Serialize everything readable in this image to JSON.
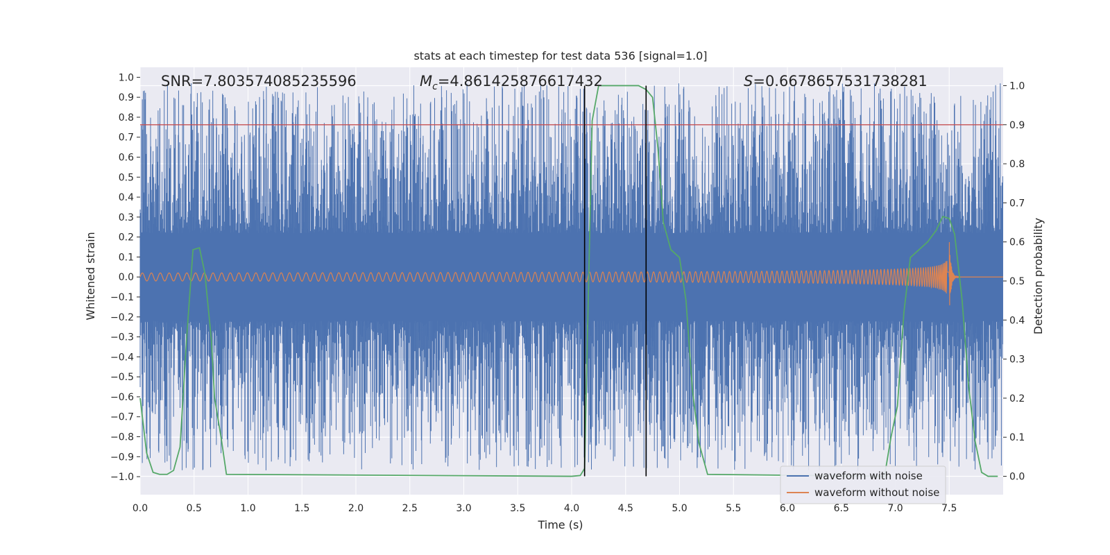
{
  "chart_data": {
    "type": "line",
    "title": "stats at each timestep for test data 536 [signal=1.0]",
    "xlabel": "Time (s)",
    "ylabel_left": "Whitened strain",
    "ylabel_right": "Detection probability",
    "xlim": [
      0.0,
      8.0
    ],
    "ylim_left": [
      -1.09,
      1.05
    ],
    "ylim_right": [
      -0.047,
      1.047
    ],
    "x_ticks": [
      "0.0",
      "0.5",
      "1.0",
      "1.5",
      "2.0",
      "2.5",
      "3.0",
      "3.5",
      "4.0",
      "4.5",
      "5.0",
      "5.5",
      "6.0",
      "6.5",
      "7.0",
      "7.5"
    ],
    "y_ticks_left": [
      "1.0",
      "0.9",
      "0.8",
      "0.7",
      "0.6",
      "0.5",
      "0.4",
      "0.3",
      "0.2",
      "0.1",
      "0.0",
      "-0.1",
      "-0.2",
      "-0.3",
      "-0.4",
      "-0.5",
      "-0.6",
      "-0.7",
      "-0.8",
      "-0.9",
      "-1.0"
    ],
    "y_ticks_right": [
      "1.0",
      "0.9",
      "0.8",
      "0.7",
      "0.6",
      "0.5",
      "0.4",
      "0.3",
      "0.2",
      "0.1",
      "0.0"
    ],
    "annotations": {
      "snr": "SNR=7.803574085235596",
      "mc_symbol": "M",
      "mc_sub": "c",
      "mc_value": "=4.861425876617432",
      "s_symbol": "S",
      "s_value": "=0.6678657531738281"
    },
    "threshold_line_right": 0.9,
    "vertical_lines_x": [
      4.12,
      4.69
    ],
    "series": [
      {
        "name": "waveform with noise",
        "axis": "left",
        "color": "#4c72b0",
        "amplitude_envelope": [
          -0.95,
          0.95
        ]
      },
      {
        "name": "waveform without noise",
        "axis": "left",
        "color": "#dd8452",
        "chirp_start_amp": 0.02,
        "chirp_peak_amp": 0.19,
        "merger_time": 7.5
      },
      {
        "name": "Detection probability",
        "axis": "right",
        "color": "#55a868",
        "x": [
          0.0,
          0.06,
          0.12,
          0.18,
          0.25,
          0.31,
          0.37,
          0.43,
          0.49,
          0.55,
          0.6,
          0.66,
          0.69,
          0.75,
          0.8,
          4.0,
          4.08,
          4.12,
          4.19,
          4.25,
          4.62,
          4.69,
          4.75,
          4.8,
          4.85,
          4.92,
          5.0,
          5.06,
          5.12,
          5.18,
          5.26,
          6.9,
          6.96,
          7.02,
          7.08,
          7.14,
          7.22,
          7.3,
          7.38,
          7.44,
          7.5,
          7.55,
          7.62,
          7.68,
          7.74,
          7.8,
          7.86,
          7.95
        ],
        "y": [
          0.2,
          0.06,
          0.01,
          0.005,
          0.005,
          0.015,
          0.075,
          0.35,
          0.58,
          0.585,
          0.52,
          0.35,
          0.2,
          0.1,
          0.005,
          0.0,
          0.002,
          0.02,
          0.91,
          1.0,
          1.0,
          0.99,
          0.97,
          0.84,
          0.65,
          0.58,
          0.56,
          0.45,
          0.22,
          0.085,
          0.005,
          0.0,
          0.1,
          0.18,
          0.42,
          0.56,
          0.58,
          0.6,
          0.63,
          0.665,
          0.66,
          0.62,
          0.45,
          0.23,
          0.09,
          0.01,
          0.0,
          0.0
        ]
      }
    ],
    "legend_position": "lower right",
    "grid": true
  }
}
